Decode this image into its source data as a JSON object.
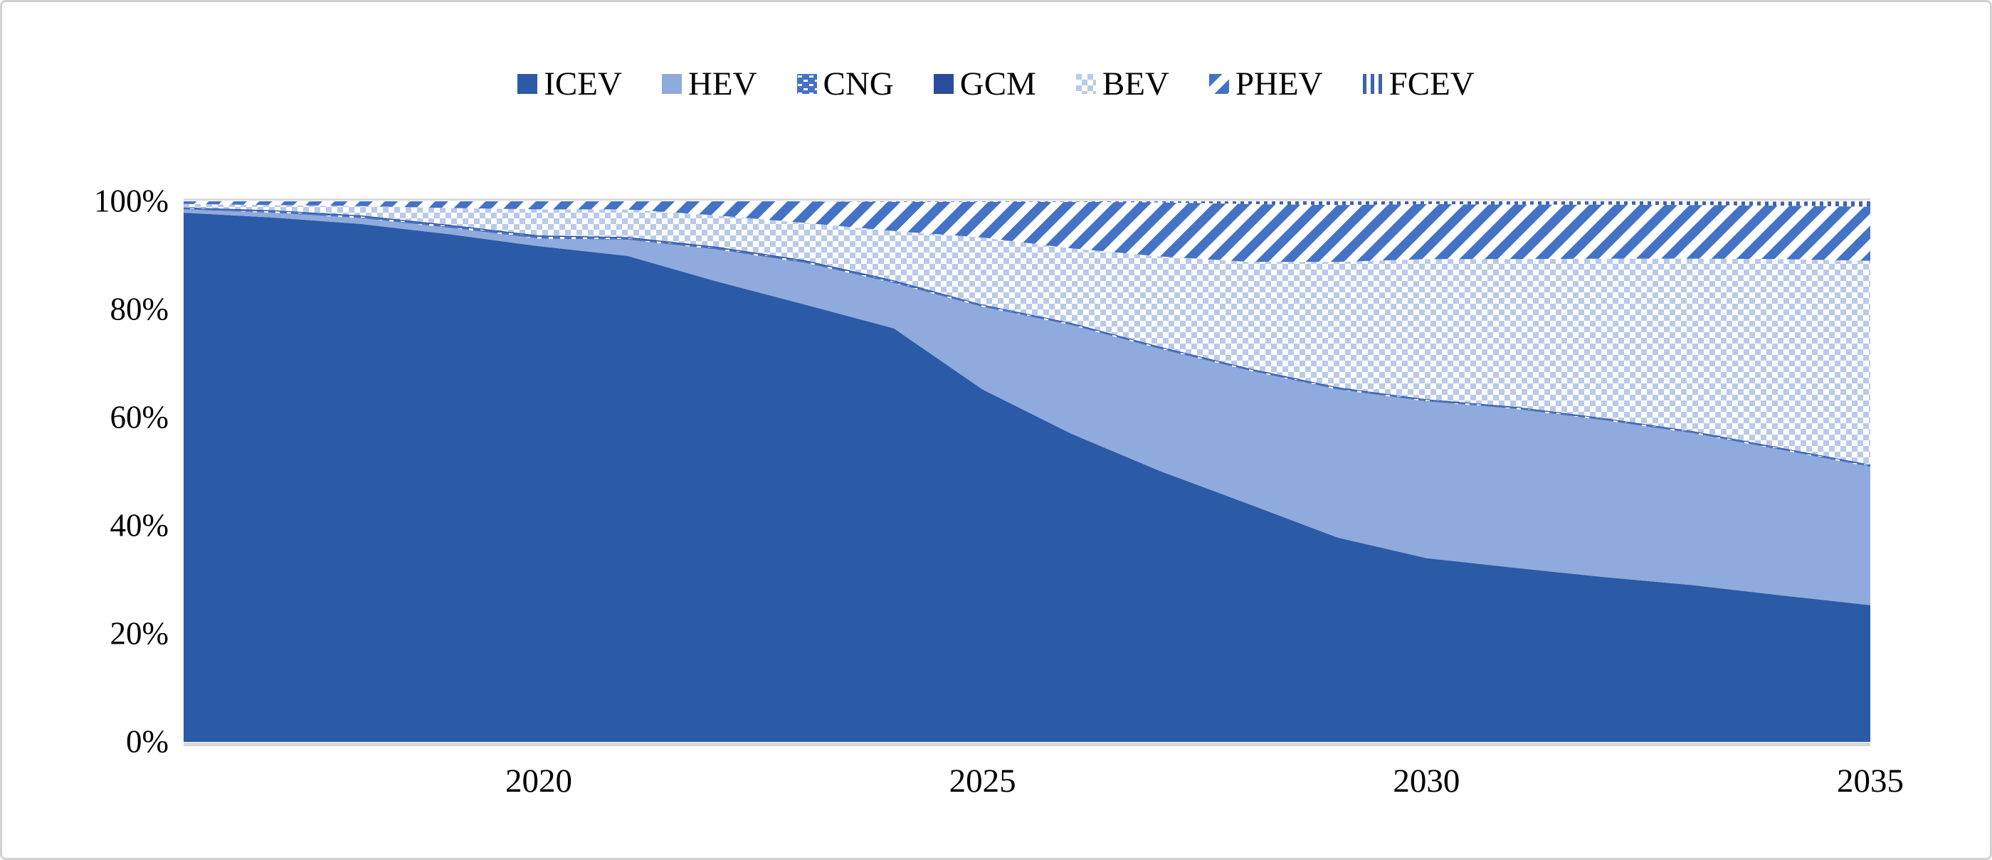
{
  "legend": {
    "items": [
      {
        "label": "ICEV",
        "swatch": "solid",
        "color": "#2b5aa7"
      },
      {
        "label": "HEV",
        "swatch": "solid",
        "color": "#8faadc"
      },
      {
        "label": "CNG",
        "swatch": "pattern",
        "pattern": "cng"
      },
      {
        "label": "GCM",
        "swatch": "solid",
        "color": "#2b4c9b"
      },
      {
        "label": "BEV",
        "swatch": "pattern",
        "pattern": "bev"
      },
      {
        "label": "PHEV",
        "swatch": "pattern",
        "pattern": "phev"
      },
      {
        "label": "FCEV",
        "swatch": "pattern",
        "pattern": "fcev"
      }
    ]
  },
  "y_axis": {
    "tick_labels": [
      "0%",
      "20%",
      "40%",
      "60%",
      "80%",
      "100%"
    ]
  },
  "x_axis": {
    "tick_labels": [
      "2020",
      "2025",
      "2030",
      "2035"
    ],
    "tick_years": [
      2020,
      2025,
      2030,
      2035
    ]
  },
  "chart_data": {
    "type": "area",
    "stacked": true,
    "percent_stacked": true,
    "title": "",
    "xlabel": "",
    "ylabel": "",
    "ylim": [
      0,
      100
    ],
    "xlim": [
      2016,
      2035
    ],
    "grid": "top-line-and-baseline-only",
    "legend_position": "top-center",
    "x": [
      2016,
      2017,
      2018,
      2019,
      2020,
      2021,
      2022,
      2023,
      2024,
      2025,
      2026,
      2027,
      2028,
      2029,
      2030,
      2031,
      2032,
      2033,
      2034,
      2035
    ],
    "series": [
      {
        "name": "ICEV",
        "style": "solid",
        "color": "#2b5aa7",
        "values": [
          97.9,
          97.0,
          95.8,
          93.9,
          91.7,
          89.9,
          85.2,
          80.9,
          76.5,
          65.2,
          57.0,
          50.1,
          44.0,
          37.8,
          34.0,
          32.2,
          30.5,
          29.0,
          27.1,
          25.3
        ]
      },
      {
        "name": "HEV",
        "style": "solid",
        "color": "#8faadc",
        "values": [
          0.6,
          0.9,
          1.1,
          1.2,
          1.4,
          3.0,
          5.9,
          7.7,
          8.4,
          15.3,
          20.1,
          22.6,
          24.7,
          27.4,
          29.0,
          29.4,
          29.0,
          28.1,
          26.9,
          25.6
        ]
      },
      {
        "name": "CNG",
        "style": "pattern-dash",
        "color": "#4472c4",
        "values": [
          0.25,
          0.3,
          0.3,
          0.35,
          0.4,
          0.3,
          0.3,
          0.3,
          0.3,
          0.25,
          0.25,
          0.25,
          0.25,
          0.25,
          0.25,
          0.25,
          0.25,
          0.25,
          0.25,
          0.25
        ]
      },
      {
        "name": "GCM",
        "style": "solid",
        "color": "#2b4c9b",
        "values": [
          0.15,
          0.15,
          0.2,
          0.2,
          0.2,
          0.2,
          0.2,
          0.2,
          0.2,
          0.15,
          0.15,
          0.15,
          0.15,
          0.15,
          0.15,
          0.15,
          0.15,
          0.15,
          0.15,
          0.15
        ]
      },
      {
        "name": "BEV",
        "style": "pattern-checker",
        "color": "#b9cae9",
        "values": [
          0.6,
          0.95,
          1.7,
          3.1,
          4.8,
          5.1,
          5.8,
          6.9,
          9.1,
          12.4,
          13.8,
          16.7,
          19.7,
          23.2,
          25.9,
          27.3,
          29.5,
          31.9,
          34.9,
          37.7
        ]
      },
      {
        "name": "PHEV",
        "style": "pattern-diagonal",
        "color": "#4472c4",
        "values": [
          0.5,
          0.7,
          0.9,
          1.25,
          1.5,
          1.5,
          2.6,
          4.0,
          5.4,
          6.6,
          8.6,
          10.0,
          10.7,
          10.5,
          10.2,
          10.1,
          10.0,
          9.9,
          9.9,
          10.0
        ]
      },
      {
        "name": "FCEV",
        "style": "pattern-vertical",
        "color": "#3e62ad",
        "values": [
          0,
          0,
          0,
          0,
          0,
          0,
          0,
          0,
          0.1,
          0.1,
          0.1,
          0.2,
          0.5,
          0.7,
          0.5,
          0.6,
          0.6,
          0.7,
          0.75,
          1.0
        ]
      }
    ],
    "colors": {
      "dark_blue": "#2b5aa7",
      "light_blue": "#8faadc",
      "pattern_blue": "#4472c4",
      "checker_blue": "#b9cae9",
      "navy": "#2b4c9b",
      "gridline_gray": "#d9d9d9",
      "axis_gray": "#d6d6d6"
    }
  }
}
